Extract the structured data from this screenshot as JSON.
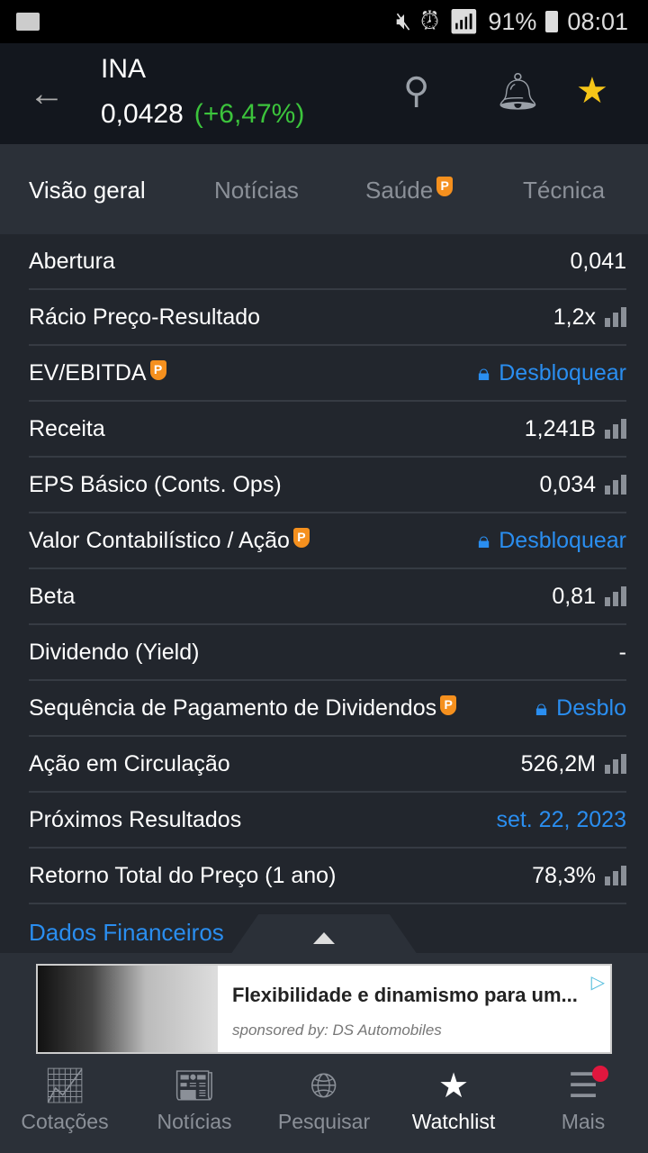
{
  "status": {
    "battery": "91%",
    "time": "08:01"
  },
  "header": {
    "symbol": "INA",
    "price": "0,0428",
    "change": "(+6,47%)"
  },
  "tabs": [
    {
      "label": "Visão geral"
    },
    {
      "label": "Notícias"
    },
    {
      "label": "Saúde"
    },
    {
      "label": "Técnica"
    }
  ],
  "rows": [
    {
      "label": "Abertura",
      "value": "0,041"
    },
    {
      "label": "Rácio Preço-Resultado",
      "value": "1,2x"
    },
    {
      "label": "EV/EBITDA",
      "value": "Desbloquear"
    },
    {
      "label": "Receita",
      "value": "1,241B"
    },
    {
      "label": "EPS Básico (Conts. Ops)",
      "value": "0,034"
    },
    {
      "label": "Valor Contabilístico / Ação",
      "value": "Desbloquear"
    },
    {
      "label": "Beta",
      "value": "0,81"
    },
    {
      "label": "Dividendo (Yield)",
      "value": "-"
    },
    {
      "label": "Sequência de Pagamento de Dividendos",
      "value": "Desblo"
    },
    {
      "label": "Ação em Circulação",
      "value": "526,2M"
    },
    {
      "label": "Próximos Resultados",
      "value": "set. 22, 2023"
    },
    {
      "label": "Retorno Total do Preço (1 ano)",
      "value": "78,3%"
    }
  ],
  "financial_link": "Dados Financeiros",
  "ad": {
    "title": "Flexibilidade e dinamismo para um...",
    "sponsor": "sponsored by: DS Automobiles"
  },
  "nav": [
    {
      "label": "Cotações"
    },
    {
      "label": "Notícias"
    },
    {
      "label": "Pesquisar"
    },
    {
      "label": "Watchlist"
    },
    {
      "label": "Mais"
    }
  ],
  "colors": {
    "positive": "#3cc43c",
    "link": "#2a8ef0",
    "premium": "#f5901e",
    "star": "#f5c518"
  }
}
